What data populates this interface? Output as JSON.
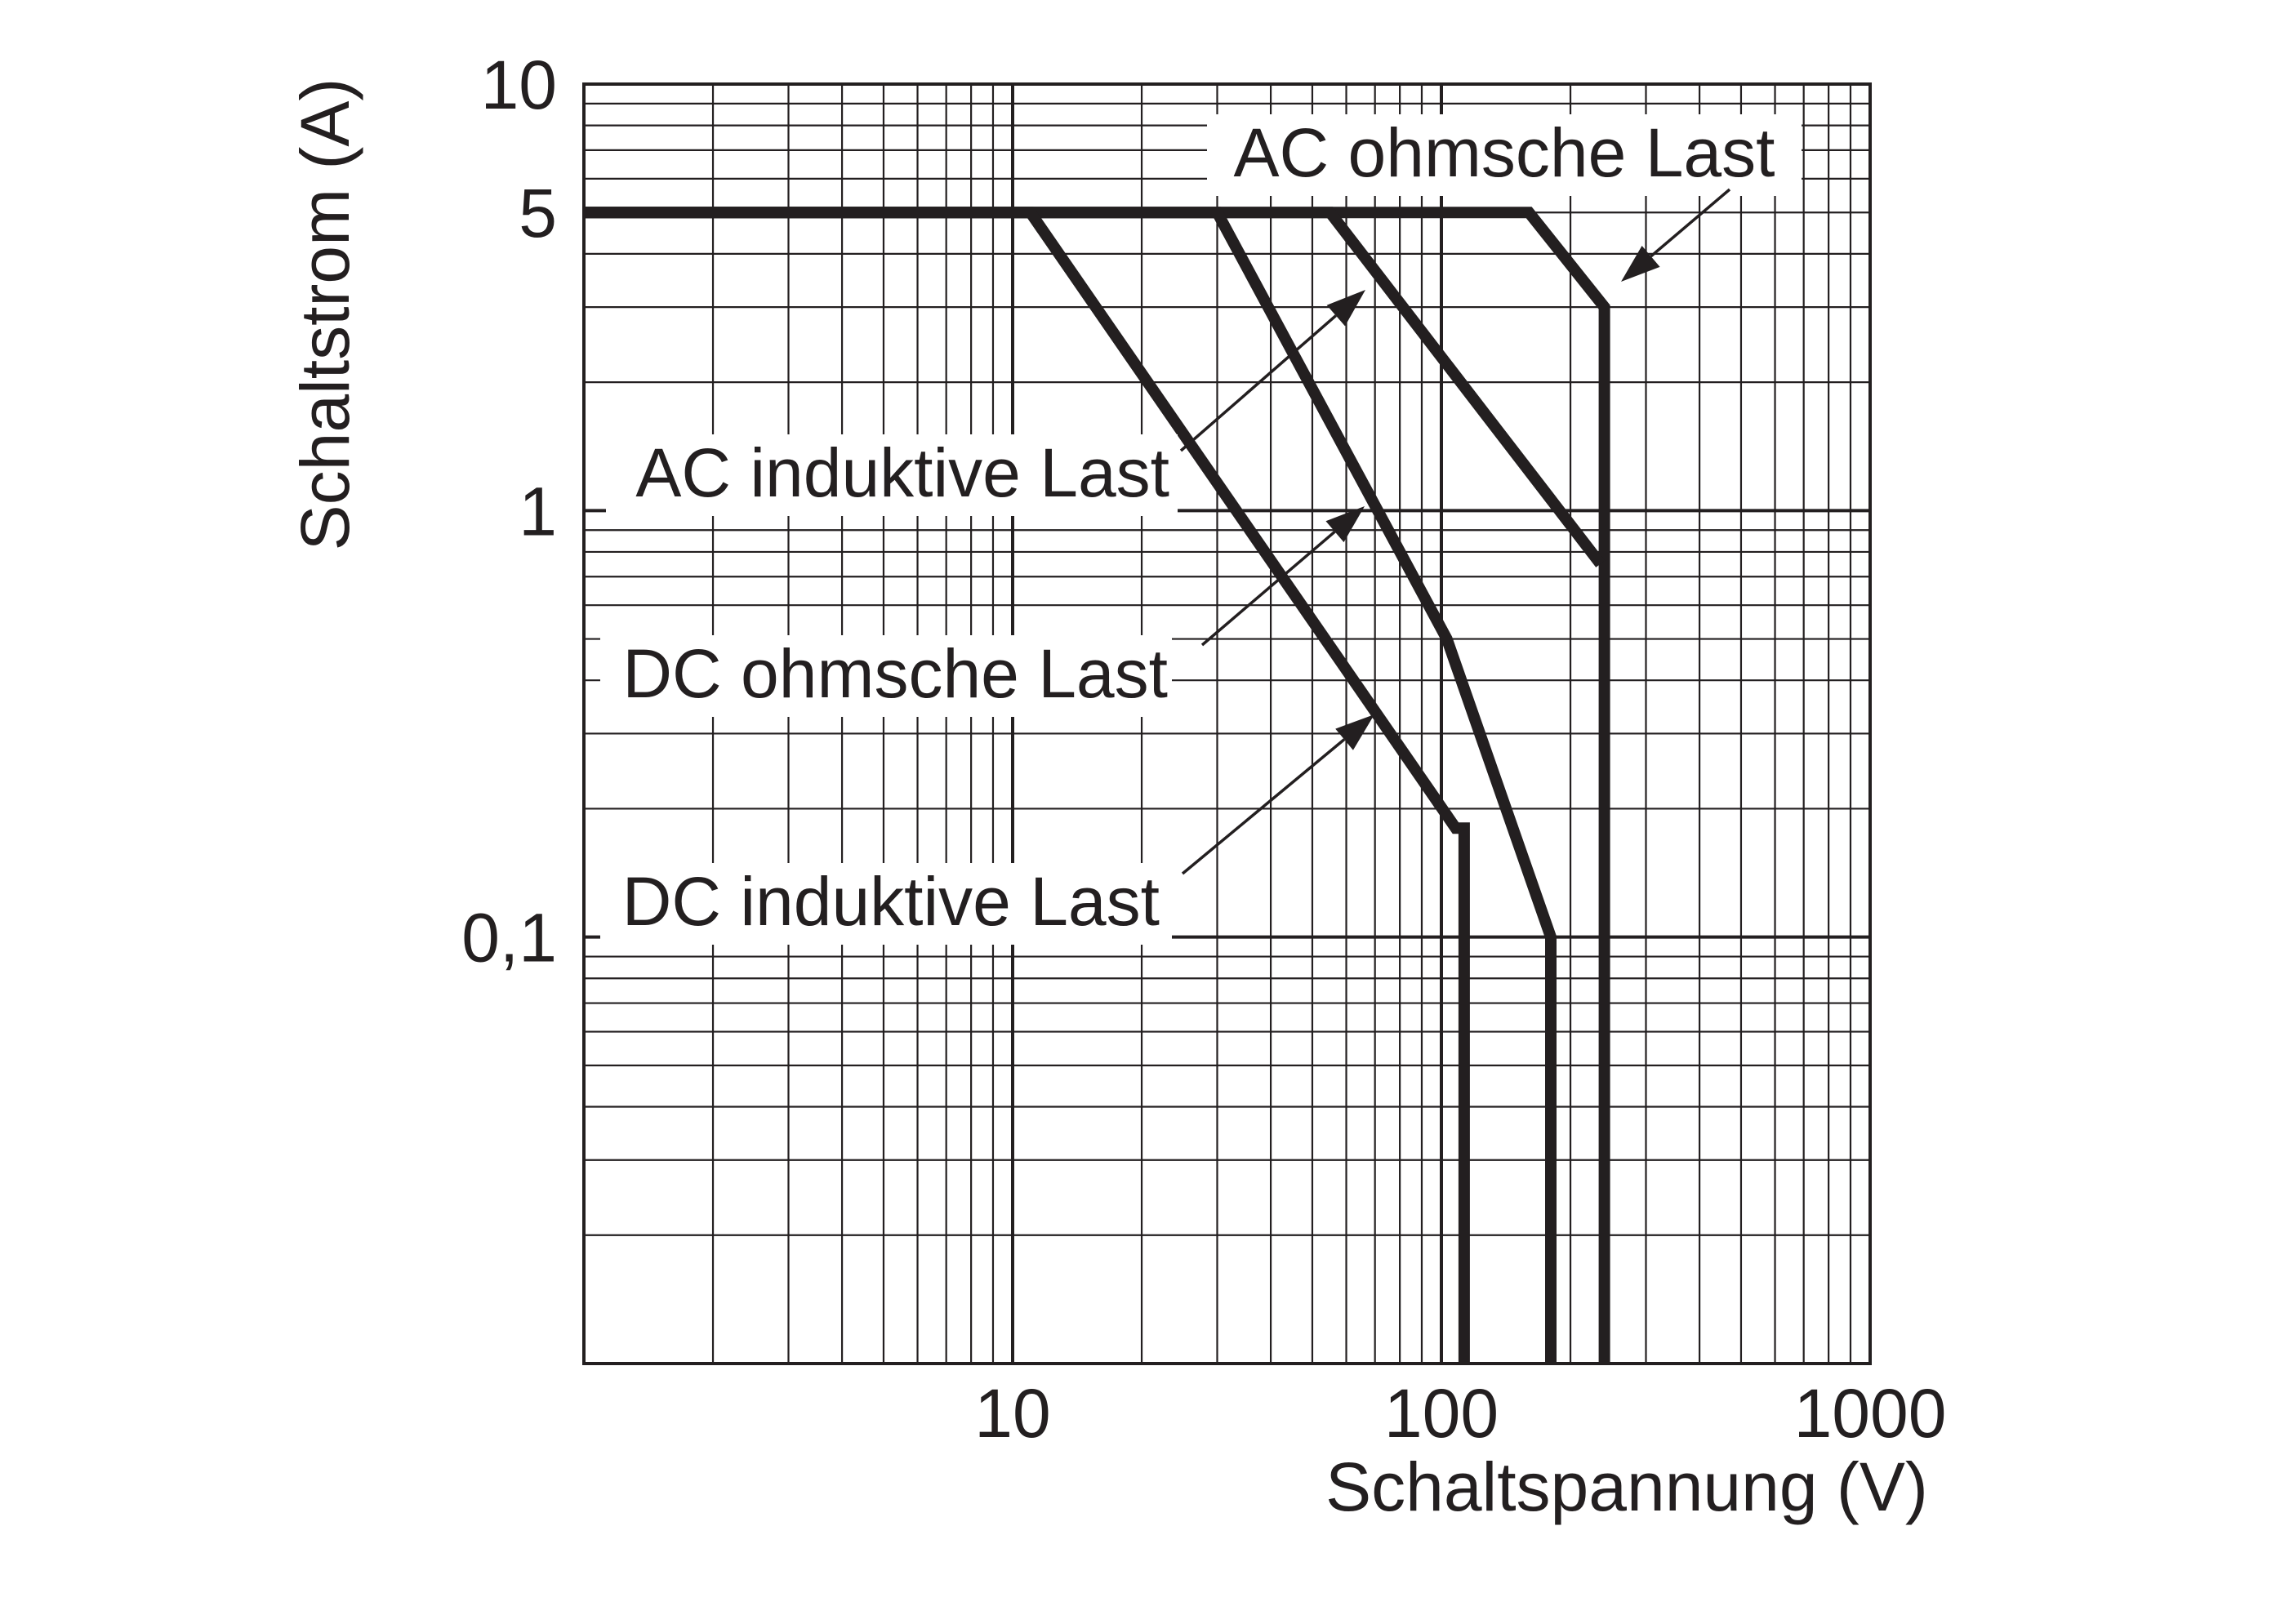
{
  "chart_data": {
    "type": "line",
    "xlabel": "Schaltspannung (V)",
    "ylabel": "Schaltstrom (A)",
    "xscale": "log",
    "yscale": "log",
    "xlim": [
      1,
      1000
    ],
    "ylim": [
      0.01,
      10
    ],
    "grid": true,
    "legend": "callout labels with arrows",
    "x_tick_labels": [
      {
        "value": 10,
        "label": "10"
      },
      {
        "value": 100,
        "label": "100"
      },
      {
        "value": 1000,
        "label": "1000"
      }
    ],
    "y_tick_labels": [
      {
        "value": 10,
        "label": "10"
      },
      {
        "value": 5,
        "label": "5"
      },
      {
        "value": 1,
        "label": "1"
      },
      {
        "value": 0.1,
        "label": "0,1"
      }
    ],
    "line_color": "#231f20",
    "series": [
      {
        "name": "AC ohmsche Last",
        "points": [
          [
            1,
            5
          ],
          [
            160,
            5
          ],
          [
            240,
            3
          ],
          [
            240,
            0.01
          ]
        ]
      },
      {
        "name": "AC induktive Last",
        "points": [
          [
            1,
            5
          ],
          [
            55,
            5
          ],
          [
            235,
            0.75
          ]
        ]
      },
      {
        "name": "DC ohmsche Last",
        "points": [
          [
            1,
            5
          ],
          [
            30,
            5
          ],
          [
            103,
            0.5
          ],
          [
            180,
            0.1
          ],
          [
            180,
            0.01
          ]
        ]
      },
      {
        "name": "DC induktive Last",
        "points": [
          [
            1,
            5
          ],
          [
            11,
            5
          ],
          [
            108,
            0.18
          ],
          [
            113,
            0.18
          ],
          [
            113,
            0.01
          ]
        ]
      }
    ]
  }
}
